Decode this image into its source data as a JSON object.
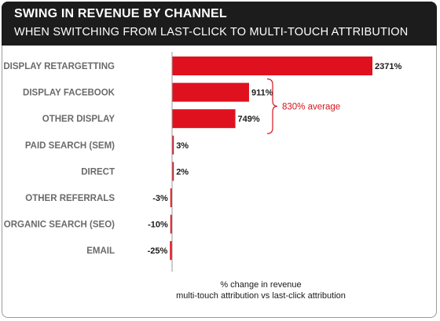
{
  "header": {
    "title": "SWING IN REVENUE BY CHANNEL",
    "subtitle": "WHEN SWITCHING FROM LAST-CLICK TO MULTI-TOUCH ATTRIBUTION"
  },
  "chart_data": {
    "type": "bar",
    "orientation": "horizontal",
    "title": "SWING IN REVENUE BY CHANNEL",
    "subtitle": "WHEN SWITCHING FROM LAST-CLICK TO MULTI-TOUCH ATTRIBUTION",
    "categories": [
      "DISPLAY RETARGETTING",
      "DISPLAY FACEBOOK",
      "OTHER DISPLAY",
      "PAID SEARCH (SEM)",
      "DIRECT",
      "OTHER REFERRALS",
      "ORGANIC SEARCH (SEO)",
      "EMAIL"
    ],
    "values": [
      2371,
      911,
      749,
      3,
      2,
      -3,
      -10,
      -25
    ],
    "value_labels": [
      "2371%",
      "911%",
      "749%",
      "3%",
      "2%",
      "-3%",
      "-10%",
      "-25%"
    ],
    "xlabel_line1": "% change in revenue",
    "xlabel_line2": "multi-touch attribution vs last-click attribution",
    "annotation": {
      "text": "830% average",
      "spans": [
        "DISPLAY FACEBOOK",
        "OTHER DISPLAY"
      ]
    },
    "bar_color": "#e0111f",
    "annotation_color": "#d4161d",
    "grid": false
  }
}
